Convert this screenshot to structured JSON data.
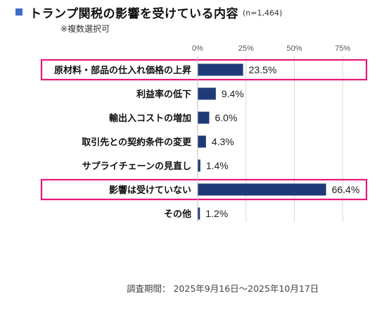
{
  "header": {
    "title": "トランプ関税の影響を受けている内容",
    "n_label": "(n=1,464)",
    "subtitle": "※複数選択可"
  },
  "footer": {
    "survey_period": "調査期間： 2025年9月16日～2025年10月17日"
  },
  "colors": {
    "bar": "#1f3a78",
    "highlight": "#e6197a",
    "grid": "#d9d9d9",
    "title_square": "#3a6cc8"
  },
  "chart_data": {
    "type": "bar",
    "orientation": "horizontal",
    "categories": [
      "原材料・部品の仕入れ価格の上昇",
      "利益率の低下",
      "輸出入コストの増加",
      "取引先との契約条件の変更",
      "サプライチェーンの見直し",
      "影響は受けていない",
      "その他"
    ],
    "values": [
      23.5,
      9.4,
      6.0,
      4.3,
      1.4,
      66.4,
      1.2
    ],
    "value_labels": [
      "23.5%",
      "9.4%",
      "6.0%",
      "4.3%",
      "1.4%",
      "66.4%",
      "1.2%"
    ],
    "highlighted": [
      true,
      false,
      false,
      false,
      false,
      true,
      false
    ],
    "xticks": [
      0,
      25,
      50,
      75
    ],
    "xtick_labels": [
      "0%",
      "25%",
      "50%",
      "75%"
    ],
    "xlim": [
      0,
      75
    ],
    "grid": true
  }
}
